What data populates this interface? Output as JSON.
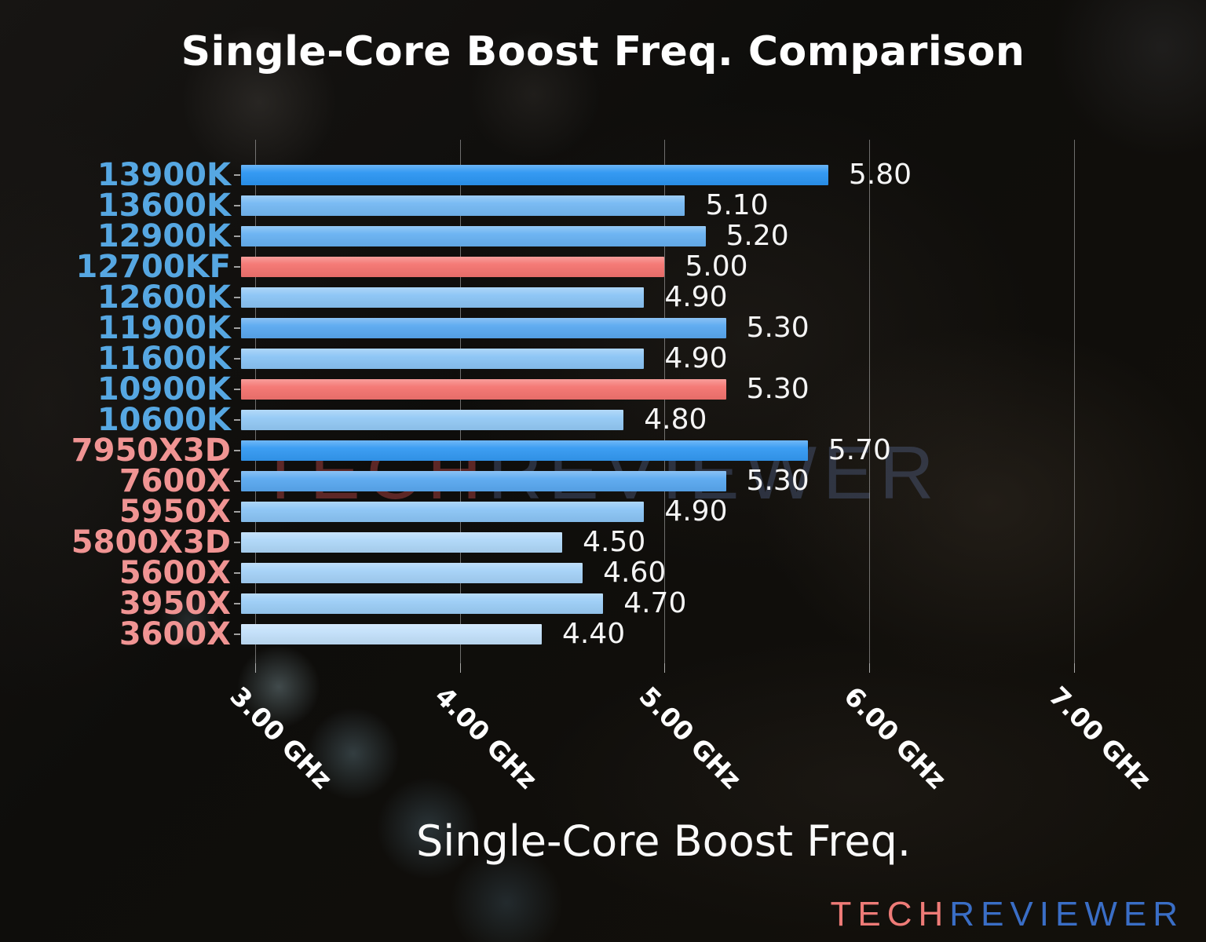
{
  "title": "Single-Core Boost Freq. Comparison",
  "watermark": {
    "part1": "TECH",
    "part2": "REVIEWER"
  },
  "logo": {
    "part1": "TECH",
    "part2": "REVIEWER",
    "part1_color": "#ee7b77",
    "part2_color": "#3a6ec6"
  },
  "chart_data": {
    "type": "bar",
    "orientation": "horizontal",
    "title": "Single-Core Boost Freq. Comparison",
    "xlabel": "Single-Core Boost Freq.",
    "unit": "GHz",
    "grid": true,
    "xlim": [
      2.93,
      7.47
    ],
    "x_ticks": [
      3.0,
      4.0,
      5.0,
      6.0,
      7.0
    ],
    "x_tick_labels": [
      "3.00 GHz",
      "4.00 GHz",
      "5.00 GHz",
      "6.00 GHz",
      "7.00 GHz"
    ],
    "categories": [
      "13900K",
      "13600K",
      "12900K",
      "12700KF",
      "12600K",
      "11900K",
      "11600K",
      "10900K",
      "10600K",
      "7950X3D",
      "7600X",
      "5950X",
      "5800X3D",
      "5600X",
      "3950X",
      "3600X"
    ],
    "values": [
      5.8,
      5.1,
      5.2,
      5.0,
      4.9,
      5.3,
      4.9,
      5.3,
      4.8,
      5.7,
      5.3,
      4.9,
      4.5,
      4.6,
      4.7,
      4.4
    ],
    "value_labels": [
      "5.80",
      "5.10",
      "5.20",
      "5.00",
      "4.90",
      "5.30",
      "4.90",
      "5.30",
      "4.80",
      "5.70",
      "5.30",
      "4.90",
      "4.50",
      "4.60",
      "4.70",
      "4.40"
    ],
    "bar_colors": [
      "#2b95f2",
      "#74b8f3",
      "#67b1f2",
      "#f4736f",
      "#8ac4f5",
      "#59a8f0",
      "#8ac4f5",
      "#f4736f",
      "#93c9f5",
      "#3399f2",
      "#59a8f0",
      "#8ac4f5",
      "#aed7f8",
      "#a4d1f7",
      "#9bcdf6",
      "#c2e0fa"
    ],
    "label_colors": [
      "#56a7e2",
      "#56a7e2",
      "#56a7e2",
      "#56a7e2",
      "#56a7e2",
      "#56a7e2",
      "#56a7e2",
      "#56a7e2",
      "#56a7e2",
      "#f09493",
      "#f09493",
      "#f09493",
      "#f09493",
      "#f09493",
      "#f09493",
      "#f09493"
    ],
    "highlight_color": "#f4736f",
    "value_text_color": "#f5f5f5",
    "legend": null
  }
}
